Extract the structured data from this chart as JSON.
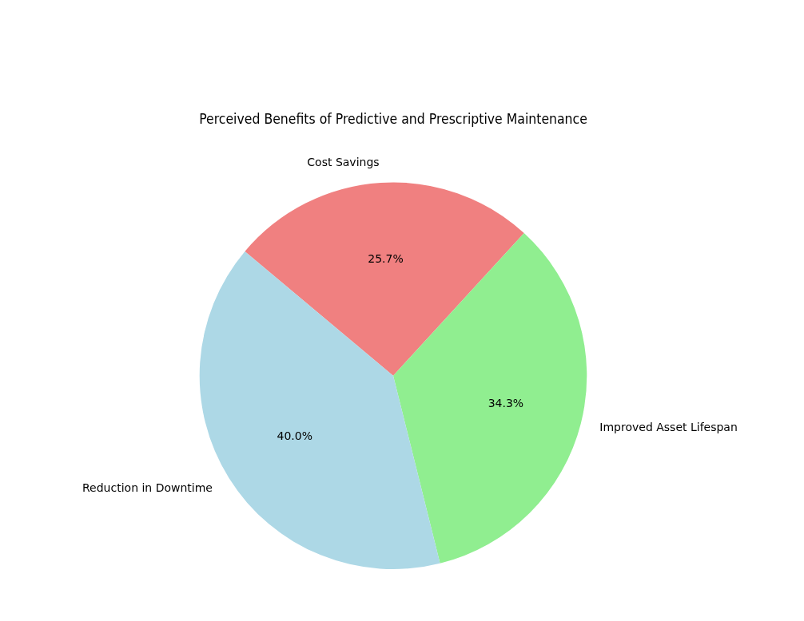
{
  "chart_data": {
    "type": "pie",
    "title": "Perceived Benefits of Predictive and Prescriptive Maintenance",
    "categories": [
      "Cost Savings",
      "Improved Asset Lifespan",
      "Reduction in Downtime"
    ],
    "values": [
      25.7,
      34.3,
      40.0
    ],
    "colors": [
      "#f08080",
      "#90ee90",
      "#add8e6"
    ],
    "value_labels": [
      "25.7%",
      "34.3%",
      "40.0%"
    ],
    "legend": false
  }
}
